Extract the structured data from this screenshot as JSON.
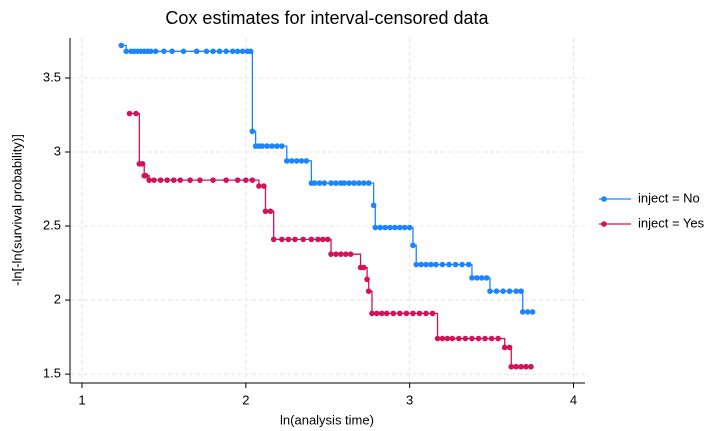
{
  "chart_data": {
    "type": "step",
    "title": "Cox estimates for interval-censored data",
    "x_label": "ln(analysis time)",
    "y_label": "-ln[-ln(survival probability)]",
    "xlim": [
      0.927,
      4.07
    ],
    "ylim": [
      1.44,
      3.77
    ],
    "xticks": [
      1,
      2,
      3,
      4
    ],
    "yticks": [
      1.5,
      2,
      2.5,
      3,
      3.5
    ],
    "grid": true,
    "legend": "right",
    "series": [
      {
        "name": "inject = No",
        "color": "#1a85ff",
        "x": [
          1.24,
          1.27,
          1.3,
          1.32,
          1.34,
          1.36,
          1.38,
          1.4,
          1.42,
          1.45,
          1.5,
          1.55,
          1.62,
          1.7,
          1.76,
          1.8,
          1.84,
          1.88,
          1.92,
          1.95,
          1.98,
          2.01,
          2.03,
          2.04,
          2.06,
          2.08,
          2.1,
          2.13,
          2.16,
          2.19,
          2.22,
          2.25,
          2.28,
          2.31,
          2.34,
          2.37,
          2.4,
          2.42,
          2.45,
          2.48,
          2.52,
          2.55,
          2.58,
          2.6,
          2.63,
          2.66,
          2.69,
          2.72,
          2.75,
          2.78,
          2.79,
          2.82,
          2.85,
          2.88,
          2.91,
          2.94,
          2.97,
          3.0,
          3.02,
          3.04,
          3.07,
          3.1,
          3.13,
          3.16,
          3.2,
          3.24,
          3.28,
          3.32,
          3.36,
          3.38,
          3.41,
          3.44,
          3.47,
          3.49,
          3.53,
          3.57,
          3.61,
          3.65,
          3.68,
          3.69,
          3.72,
          3.75
        ],
        "values": [
          3.72,
          3.68,
          3.68,
          3.68,
          3.68,
          3.68,
          3.68,
          3.68,
          3.68,
          3.68,
          3.68,
          3.68,
          3.68,
          3.68,
          3.68,
          3.68,
          3.68,
          3.68,
          3.68,
          3.68,
          3.68,
          3.68,
          3.68,
          3.14,
          3.04,
          3.04,
          3.04,
          3.04,
          3.04,
          3.04,
          3.04,
          2.94,
          2.94,
          2.94,
          2.94,
          2.94,
          2.79,
          2.79,
          2.79,
          2.79,
          2.79,
          2.79,
          2.79,
          2.79,
          2.79,
          2.79,
          2.79,
          2.79,
          2.79,
          2.64,
          2.49,
          2.49,
          2.49,
          2.49,
          2.49,
          2.49,
          2.49,
          2.49,
          2.37,
          2.24,
          2.24,
          2.24,
          2.24,
          2.24,
          2.24,
          2.24,
          2.24,
          2.24,
          2.24,
          2.15,
          2.15,
          2.15,
          2.15,
          2.06,
          2.06,
          2.06,
          2.06,
          2.06,
          2.06,
          1.92,
          1.92,
          1.92
        ]
      },
      {
        "name": "inject = Yes",
        "color": "#d41159",
        "x": [
          1.29,
          1.33,
          1.35,
          1.37,
          1.38,
          1.39,
          1.41,
          1.44,
          1.48,
          1.52,
          1.56,
          1.6,
          1.66,
          1.72,
          1.8,
          1.88,
          1.95,
          2.0,
          2.04,
          2.08,
          2.11,
          2.12,
          2.15,
          2.17,
          2.22,
          2.26,
          2.3,
          2.35,
          2.4,
          2.44,
          2.47,
          2.5,
          2.52,
          2.55,
          2.58,
          2.61,
          2.64,
          2.7,
          2.72,
          2.74,
          2.75,
          2.77,
          2.8,
          2.83,
          2.86,
          2.9,
          2.94,
          2.98,
          3.02,
          3.06,
          3.1,
          3.14,
          3.17,
          3.2,
          3.23,
          3.26,
          3.3,
          3.34,
          3.38,
          3.42,
          3.46,
          3.5,
          3.54,
          3.58,
          3.61,
          3.62,
          3.65,
          3.68,
          3.71,
          3.74
        ],
        "values": [
          3.26,
          3.26,
          2.92,
          2.92,
          2.84,
          2.84,
          2.81,
          2.81,
          2.81,
          2.81,
          2.81,
          2.81,
          2.81,
          2.81,
          2.81,
          2.81,
          2.81,
          2.81,
          2.81,
          2.77,
          2.77,
          2.6,
          2.6,
          2.41,
          2.41,
          2.41,
          2.41,
          2.41,
          2.41,
          2.41,
          2.41,
          2.41,
          2.31,
          2.31,
          2.31,
          2.31,
          2.31,
          2.22,
          2.22,
          2.14,
          2.06,
          1.91,
          1.91,
          1.91,
          1.91,
          1.91,
          1.91,
          1.91,
          1.91,
          1.91,
          1.91,
          1.91,
          1.74,
          1.74,
          1.74,
          1.74,
          1.74,
          1.74,
          1.74,
          1.74,
          1.74,
          1.74,
          1.74,
          1.68,
          1.68,
          1.55,
          1.55,
          1.55,
          1.55,
          1.55
        ]
      }
    ]
  }
}
